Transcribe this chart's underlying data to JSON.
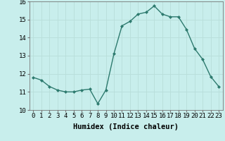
{
  "x": [
    0,
    1,
    2,
    3,
    4,
    5,
    6,
    7,
    8,
    9,
    10,
    11,
    12,
    13,
    14,
    15,
    16,
    17,
    18,
    19,
    20,
    21,
    22,
    23
  ],
  "y": [
    11.8,
    11.65,
    11.3,
    11.1,
    11.0,
    11.0,
    11.1,
    11.15,
    10.35,
    11.1,
    13.1,
    14.65,
    14.9,
    15.3,
    15.4,
    15.75,
    15.3,
    15.15,
    15.15,
    14.45,
    13.4,
    12.8,
    11.85,
    11.3
  ],
  "line_color": "#2d7a6e",
  "bg_color": "#c8eeec",
  "grid_color": "#b8deda",
  "xlabel": "Humidex (Indice chaleur)",
  "xlim": [
    -0.5,
    23.5
  ],
  "ylim": [
    10,
    16
  ],
  "xticks": [
    0,
    1,
    2,
    3,
    4,
    5,
    6,
    7,
    8,
    9,
    10,
    11,
    12,
    13,
    14,
    15,
    16,
    17,
    18,
    19,
    20,
    21,
    22,
    23
  ],
  "yticks": [
    10,
    11,
    12,
    13,
    14,
    15,
    16
  ],
  "xlabel_fontsize": 7.5,
  "tick_fontsize": 6.5,
  "markersize": 2.0,
  "linewidth": 1.0
}
